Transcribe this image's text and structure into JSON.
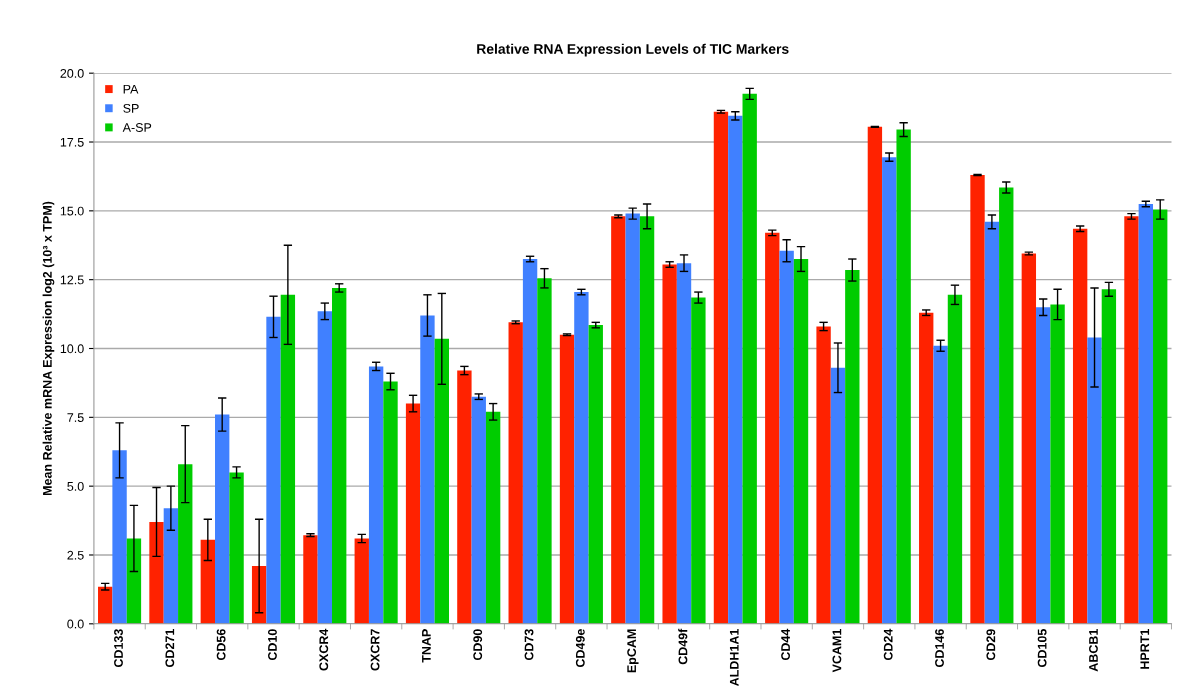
{
  "chart_data": {
    "type": "bar",
    "title": "Relative RNA Expression Levels of TIC Markers",
    "ylabel": "Mean Relative mRNA Expression log2 (10³ x TPM)",
    "categories": [
      "CD133",
      "CD271",
      "CD56",
      "CD10",
      "CXCR4",
      "CXCR7",
      "TNAP",
      "CD90",
      "CD73",
      "CD49e",
      "EpCAM",
      "CD49f",
      "ALDH1A1",
      "CD44",
      "VCAM1",
      "CD24",
      "CD146",
      "CD29",
      "CD105",
      "ABCB1",
      "HPRT1"
    ],
    "series": [
      {
        "name": "PA",
        "color": "#ff2200",
        "values": [
          1.35,
          3.7,
          3.05,
          2.1,
          3.22,
          3.1,
          8.0,
          9.2,
          10.95,
          10.5,
          14.8,
          13.05,
          18.6,
          14.2,
          10.8,
          18.05,
          11.3,
          16.3,
          13.45,
          14.35,
          14.8
        ],
        "errors": [
          0.12,
          1.25,
          0.75,
          1.7,
          0.05,
          0.15,
          0.3,
          0.15,
          0.05,
          0.03,
          0.05,
          0.1,
          0.05,
          0.1,
          0.15,
          0.02,
          0.1,
          0.02,
          0.05,
          0.1,
          0.1
        ]
      },
      {
        "name": "SP",
        "color": "#4080ff",
        "values": [
          6.3,
          4.2,
          7.6,
          11.15,
          11.35,
          9.35,
          11.2,
          8.25,
          13.25,
          12.05,
          14.9,
          13.1,
          18.45,
          13.55,
          9.3,
          16.95,
          10.1,
          14.6,
          11.5,
          10.4,
          15.25
        ],
        "errors": [
          1.0,
          0.8,
          0.6,
          0.75,
          0.3,
          0.15,
          0.75,
          0.1,
          0.1,
          0.1,
          0.2,
          0.3,
          0.15,
          0.4,
          0.9,
          0.15,
          0.2,
          0.25,
          0.3,
          1.8,
          0.1
        ]
      },
      {
        "name": "A-SP",
        "color": "#00cc00",
        "values": [
          3.1,
          5.8,
          5.5,
          11.95,
          12.2,
          8.8,
          10.35,
          7.7,
          12.55,
          10.85,
          14.8,
          11.85,
          19.25,
          13.25,
          12.85,
          17.95,
          11.95,
          15.85,
          11.6,
          12.15,
          15.05
        ],
        "errors": [
          1.2,
          1.4,
          0.2,
          1.8,
          0.15,
          0.3,
          1.65,
          0.3,
          0.35,
          0.1,
          0.45,
          0.2,
          0.2,
          0.45,
          0.4,
          0.25,
          0.35,
          0.2,
          0.55,
          0.25,
          0.35
        ]
      }
    ],
    "ylim": [
      0,
      20
    ],
    "yticks": [
      {
        "value": 0,
        "label": "0.0"
      },
      {
        "value": 2.5,
        "label": "2.5"
      },
      {
        "value": 5,
        "label": "5.0"
      },
      {
        "value": 7.5,
        "label": "7.5"
      },
      {
        "value": 10,
        "label": "10.0"
      },
      {
        "value": 12.5,
        "label": "12.5"
      },
      {
        "value": 15,
        "label": "15.0"
      },
      {
        "value": 17.5,
        "label": "17.5"
      },
      {
        "value": 20,
        "label": "20.0"
      }
    ],
    "grid": "y",
    "legend": "top left"
  }
}
